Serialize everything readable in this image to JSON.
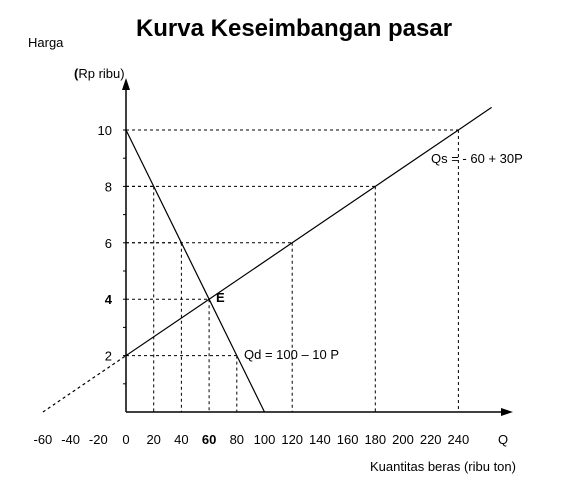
{
  "chart_data": {
    "type": "line",
    "title": "Kurva Keseimbangan pasar",
    "ylabel_top": "Harga",
    "ylabel_unit_open": "(",
    "ylabel_unit": "Rp ribu)",
    "xlabel": "Kuantitas beras (ribu ton)",
    "x_axis_end_label": "Q",
    "xlim": [
      -60,
      240
    ],
    "ylim": [
      0,
      10
    ],
    "x_ticks": [
      "-60",
      "-40",
      "-20",
      "0",
      "20",
      "40",
      "60",
      "80",
      "100",
      "120",
      "140",
      "160",
      "180",
      "200",
      "220",
      "240"
    ],
    "x_tick_values": [
      -60,
      -40,
      -20,
      0,
      20,
      40,
      60,
      80,
      100,
      120,
      140,
      160,
      180,
      200,
      220,
      240
    ],
    "y_ticks": [
      "2",
      "4",
      "6",
      "8",
      "10"
    ],
    "y_tick_values": [
      2,
      4,
      6,
      8,
      10
    ],
    "bold_ticks": [
      "60",
      "4"
    ],
    "series": [
      {
        "name": "Qd = 100 – 10 P",
        "x": [
          0,
          20,
          40,
          60,
          80,
          100
        ],
        "y": [
          10,
          8,
          6,
          4,
          2,
          0
        ],
        "style": "solid"
      },
      {
        "name": "Qs = - 60  + 30P",
        "x": [
          0,
          60,
          120,
          180,
          240,
          264
        ],
        "y": [
          2,
          4,
          6,
          8,
          10,
          10.8
        ],
        "style": "solid"
      },
      {
        "name": "",
        "x": [
          -60,
          0
        ],
        "y": [
          0,
          2
        ],
        "style": "dashed"
      }
    ],
    "guide_points": [
      {
        "x": 20,
        "y": 8
      },
      {
        "x": 40,
        "y": 6
      },
      {
        "x": 60,
        "y": 4
      },
      {
        "x": 80,
        "y": 2
      },
      {
        "x": 120,
        "y": 6
      },
      {
        "x": 180,
        "y": 8
      },
      {
        "x": 240,
        "y": 10
      }
    ],
    "equilibrium": {
      "label": "E",
      "x": 60,
      "y": 4
    },
    "annotations": {
      "supply": "Qs = - 60  + 30P",
      "demand": "Qd = 100 – 10 P"
    },
    "grid": false,
    "colors": {
      "line": "#000000",
      "background": "#ffffff"
    }
  }
}
